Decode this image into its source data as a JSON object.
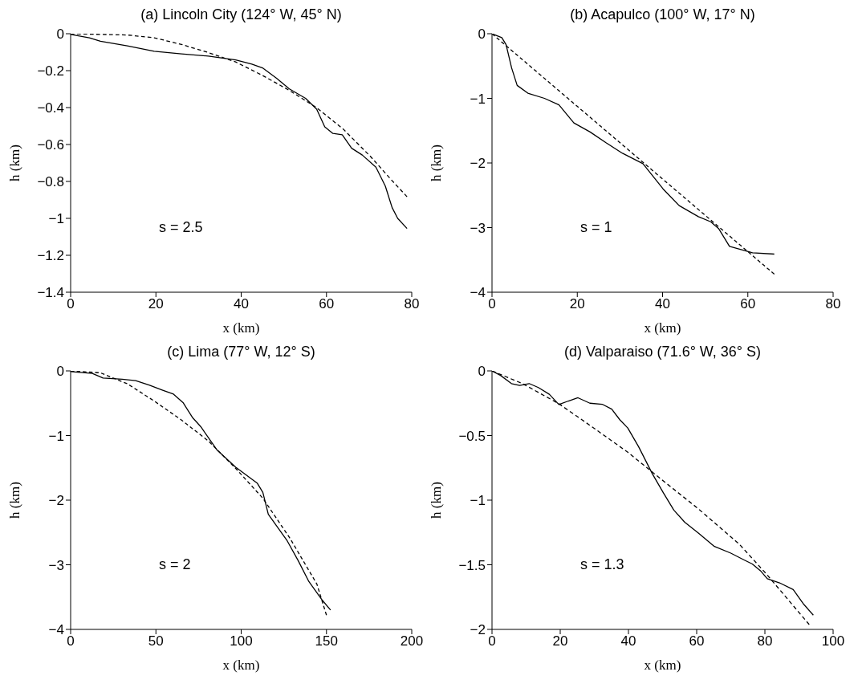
{
  "chart_data": [
    {
      "type": "line",
      "title": "(a) Lincoln City (124° W, 45° N)",
      "xlabel": "x (km)",
      "ylabel": "h (km)",
      "xlim": [
        0,
        80
      ],
      "xticks": [
        0,
        20,
        40,
        60,
        80
      ],
      "ylim": [
        -1.4,
        0
      ],
      "yticks": [
        -1.4,
        -1.2,
        -1,
        -0.8,
        -0.6,
        -0.4,
        -0.2,
        0
      ],
      "annotations": [
        "s = 2.5"
      ],
      "series": [
        {
          "color": "#000000",
          "line_style": "solid",
          "x": [
            0,
            4.4,
            7,
            13.3,
            19.6,
            26,
            32.3,
            38.7,
            42.5,
            45,
            48.3,
            51.3,
            55.1,
            57.7,
            59.6,
            61.5,
            63.7,
            65.9,
            68.4,
            71.6,
            73.8,
            75.4,
            76.7,
            78.9
          ],
          "values": [
            -0.004,
            -0.022,
            -0.041,
            -0.066,
            -0.095,
            -0.109,
            -0.121,
            -0.142,
            -0.165,
            -0.185,
            -0.241,
            -0.299,
            -0.35,
            -0.409,
            -0.504,
            -0.54,
            -0.547,
            -0.62,
            -0.657,
            -0.723,
            -0.825,
            -0.942,
            -1.0,
            -1.055
          ]
        },
        {
          "color": "#000000",
          "line_style": "dashed",
          "x": [
            0,
            13.3,
            19.6,
            26,
            32.3,
            38.7,
            45,
            51.3,
            57.7,
            64,
            70.3,
            75.4,
            78.9
          ],
          "values": [
            0,
            -0.007,
            -0.022,
            -0.058,
            -0.102,
            -0.153,
            -0.226,
            -0.307,
            -0.401,
            -0.518,
            -0.664,
            -0.796,
            -0.883
          ]
        }
      ]
    },
    {
      "type": "line",
      "title": "(b) Acapulco (100° W, 17° N)",
      "xlabel": "x (km)",
      "ylabel": "h (km)",
      "xlim": [
        0,
        80
      ],
      "xticks": [
        0,
        20,
        40,
        60,
        80
      ],
      "ylim": [
        -4,
        0
      ],
      "yticks": [
        -4,
        -3,
        -2,
        -1,
        0
      ],
      "annotations": [
        "s = 1"
      ],
      "series": [
        {
          "color": "#000000",
          "line_style": "solid",
          "x": [
            0,
            2.3,
            3.3,
            4.6,
            5.9,
            8.4,
            12.3,
            15.7,
            19.2,
            23,
            26.8,
            30.6,
            35.4,
            40.1,
            43.9,
            48.4,
            51.3,
            53.2,
            55.7,
            61.1,
            66.2
          ],
          "values": [
            0,
            -0.06,
            -0.17,
            -0.53,
            -0.8,
            -0.92,
            -1.0,
            -1.1,
            -1.38,
            -1.52,
            -1.69,
            -1.85,
            -2.01,
            -2.4,
            -2.66,
            -2.83,
            -2.91,
            -3.02,
            -3.29,
            -3.39,
            -3.41
          ]
        },
        {
          "color": "#000000",
          "line_style": "dashed",
          "x": [
            0,
            33.1,
            66.2
          ],
          "values": [
            0,
            -1.86,
            -3.72
          ]
        }
      ]
    },
    {
      "type": "line",
      "title": "(c) Lima (77° W, 12° S)",
      "xlabel": "x (km)",
      "ylabel": "h (km)",
      "xlim": [
        0,
        200
      ],
      "xticks": [
        0,
        50,
        100,
        150,
        200
      ],
      "ylim": [
        -4,
        0
      ],
      "yticks": [
        -4,
        -3,
        -2,
        -1,
        0
      ],
      "annotations": [
        "s = 2"
      ],
      "series": [
        {
          "color": "#000000",
          "line_style": "solid",
          "x": [
            0,
            12.7,
            19,
            30.2,
            38.1,
            46,
            54,
            60.3,
            65.9,
            71.4,
            76.2,
            85.7,
            96.8,
            109.5,
            112.7,
            115.9,
            127,
            133.3,
            139.7,
            147.6,
            152.4
          ],
          "values": [
            -0.01,
            -0.04,
            -0.11,
            -0.13,
            -0.15,
            -0.22,
            -0.3,
            -0.36,
            -0.49,
            -0.72,
            -0.86,
            -1.22,
            -1.49,
            -1.74,
            -1.88,
            -2.22,
            -2.63,
            -2.93,
            -3.26,
            -3.55,
            -3.7
          ]
        },
        {
          "color": "#000000",
          "line_style": "dashed",
          "x": [
            0,
            17.5,
            33.3,
            49.2,
            65,
            81,
            96.8,
            112.7,
            128.6,
            144.4,
            150
          ],
          "values": [
            0,
            -0.03,
            -0.2,
            -0.47,
            -0.76,
            -1.09,
            -1.51,
            -1.97,
            -2.59,
            -3.3,
            -3.78
          ]
        }
      ]
    },
    {
      "type": "line",
      "title": "(d) Valparaiso (71.6° W, 36° S)",
      "xlabel": "x (km)",
      "ylabel": "h (km)",
      "xlim": [
        0,
        100
      ],
      "xticks": [
        0,
        20,
        40,
        60,
        80,
        100
      ],
      "ylim": [
        -2,
        0
      ],
      "yticks": [
        -2,
        -1.5,
        -1,
        -0.5,
        0
      ],
      "annotations": [
        "s = 1.3"
      ],
      "series": [
        {
          "color": "#000000",
          "line_style": "solid",
          "x": [
            0,
            2.5,
            5.7,
            8.1,
            10.9,
            13.6,
            16.8,
            19.6,
            22.4,
            25.2,
            28.7,
            32.3,
            35.1,
            37.5,
            39.8,
            43,
            47,
            50.2,
            53.3,
            56.5,
            60.5,
            65.2,
            70,
            73.9,
            76.3,
            78.7,
            80.7,
            84.3,
            88.3,
            91.4,
            94.2
          ],
          "values": [
            0,
            -0.035,
            -0.098,
            -0.112,
            -0.098,
            -0.129,
            -0.181,
            -0.26,
            -0.233,
            -0.208,
            -0.25,
            -0.258,
            -0.296,
            -0.379,
            -0.442,
            -0.588,
            -0.796,
            -0.942,
            -1.077,
            -1.171,
            -1.254,
            -1.358,
            -1.41,
            -1.463,
            -1.494,
            -1.546,
            -1.608,
            -1.64,
            -1.692,
            -1.806,
            -1.89
          ]
        },
        {
          "color": "#000000",
          "line_style": "dashed",
          "x": [
            0,
            8.9,
            19.6,
            28.7,
            39.8,
            48.6,
            60.5,
            72.4,
            80.3,
            93
          ],
          "values": [
            0,
            -0.098,
            -0.254,
            -0.421,
            -0.629,
            -0.817,
            -1.067,
            -1.338,
            -1.567,
            -1.963
          ]
        }
      ]
    }
  ]
}
